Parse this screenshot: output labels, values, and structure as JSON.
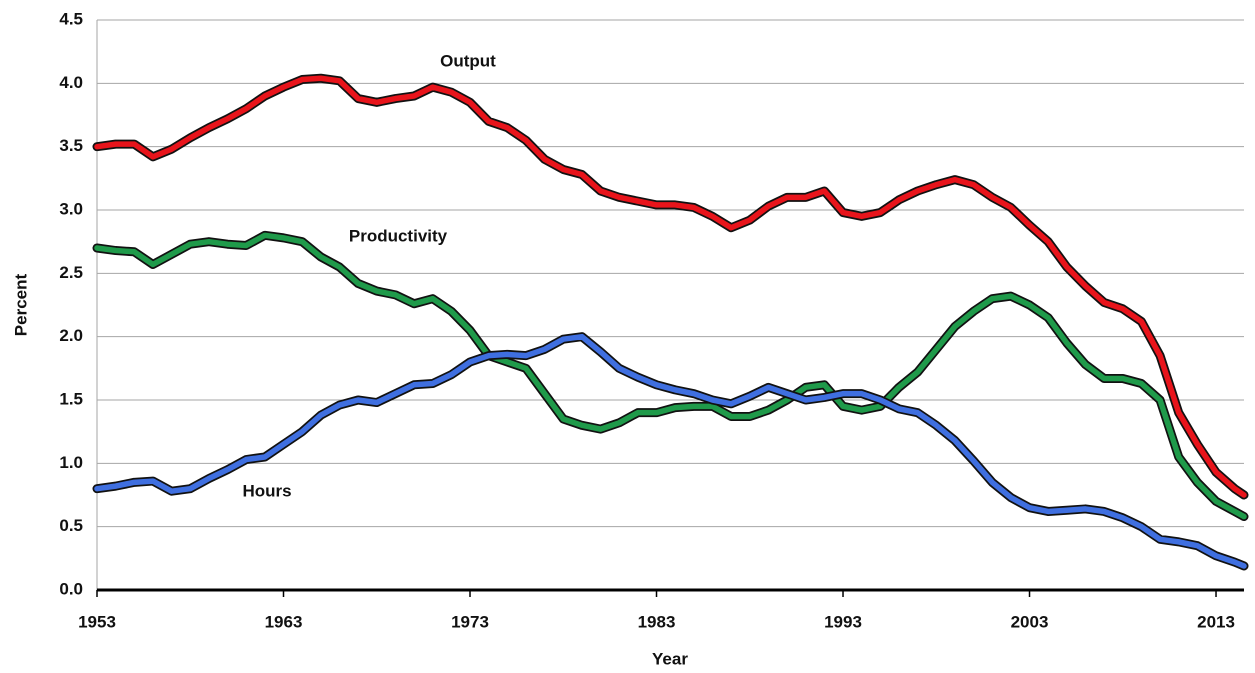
{
  "chart_data": {
    "type": "line",
    "xlabel": "Year",
    "ylabel": "Percent",
    "x": [
      1953,
      1954,
      1955,
      1956,
      1957,
      1958,
      1959,
      1960,
      1961,
      1962,
      1963,
      1964,
      1965,
      1966,
      1967,
      1968,
      1969,
      1970,
      1971,
      1972,
      1973,
      1974,
      1975,
      1976,
      1977,
      1978,
      1979,
      1980,
      1981,
      1982,
      1983,
      1984,
      1985,
      1986,
      1987,
      1988,
      1989,
      1990,
      1991,
      1992,
      1993,
      1994,
      1995,
      1996,
      1997,
      1998,
      1999,
      2000,
      2001,
      2002,
      2003,
      2004,
      2005,
      2006,
      2007,
      2008,
      2009,
      2010,
      2011,
      2012,
      2013,
      2014,
      2014.5
    ],
    "series": [
      {
        "name": "Output",
        "color": "#e8141b",
        "values": [
          3.5,
          3.52,
          3.52,
          3.42,
          3.48,
          3.57,
          3.65,
          3.72,
          3.8,
          3.9,
          3.97,
          4.03,
          4.04,
          4.02,
          3.88,
          3.85,
          3.88,
          3.9,
          3.97,
          3.93,
          3.85,
          3.7,
          3.65,
          3.55,
          3.4,
          3.32,
          3.28,
          3.15,
          3.1,
          3.07,
          3.04,
          3.04,
          3.02,
          2.95,
          2.86,
          2.92,
          3.03,
          3.1,
          3.1,
          3.15,
          2.98,
          2.95,
          2.98,
          3.08,
          3.15,
          3.2,
          3.24,
          3.2,
          3.1,
          3.02,
          2.88,
          2.75,
          2.55,
          2.4,
          2.27,
          2.22,
          2.12,
          1.85,
          1.4,
          1.15,
          0.93,
          0.8,
          0.75
        ]
      },
      {
        "name": "Productivity",
        "color": "#1f9a4a",
        "values": [
          2.7,
          2.68,
          2.67,
          2.57,
          2.65,
          2.73,
          2.75,
          2.73,
          2.72,
          2.8,
          2.78,
          2.75,
          2.63,
          2.55,
          2.42,
          2.36,
          2.33,
          2.26,
          2.3,
          2.2,
          2.05,
          1.85,
          1.8,
          1.75,
          1.55,
          1.35,
          1.3,
          1.27,
          1.32,
          1.4,
          1.4,
          1.44,
          1.45,
          1.45,
          1.37,
          1.37,
          1.42,
          1.5,
          1.6,
          1.62,
          1.45,
          1.42,
          1.45,
          1.6,
          1.72,
          1.9,
          2.08,
          2.2,
          2.3,
          2.32,
          2.25,
          2.15,
          1.95,
          1.78,
          1.67,
          1.67,
          1.63,
          1.5,
          1.05,
          0.85,
          0.7,
          0.62,
          0.58
        ]
      },
      {
        "name": "Hours",
        "color": "#3f6fe0",
        "values": [
          0.8,
          0.82,
          0.85,
          0.86,
          0.78,
          0.8,
          0.88,
          0.95,
          1.03,
          1.05,
          1.15,
          1.25,
          1.38,
          1.46,
          1.5,
          1.48,
          1.55,
          1.62,
          1.63,
          1.7,
          1.8,
          1.85,
          1.86,
          1.85,
          1.9,
          1.98,
          2.0,
          1.88,
          1.75,
          1.68,
          1.62,
          1.58,
          1.55,
          1.5,
          1.47,
          1.53,
          1.6,
          1.55,
          1.5,
          1.52,
          1.55,
          1.55,
          1.5,
          1.43,
          1.4,
          1.3,
          1.18,
          1.02,
          0.85,
          0.73,
          0.65,
          0.62,
          0.63,
          0.64,
          0.62,
          0.57,
          0.5,
          0.4,
          0.38,
          0.35,
          0.27,
          0.22,
          0.19
        ]
      }
    ],
    "xlim": [
      1953,
      2014.5
    ],
    "xticks": [
      1953,
      1963,
      1973,
      1983,
      1993,
      2003,
      2013
    ],
    "ylim": [
      0,
      4.5
    ],
    "yticks": [
      {
        "value": 0,
        "label": "0.0"
      },
      0.5,
      {
        "value": 1,
        "label": "1.0"
      },
      1.5,
      {
        "value": 2,
        "label": "2.0"
      },
      2.5,
      {
        "value": 3,
        "label": "3.0"
      },
      3.5,
      {
        "value": 4,
        "label": "4.0"
      },
      4.5
    ],
    "grid": true
  }
}
